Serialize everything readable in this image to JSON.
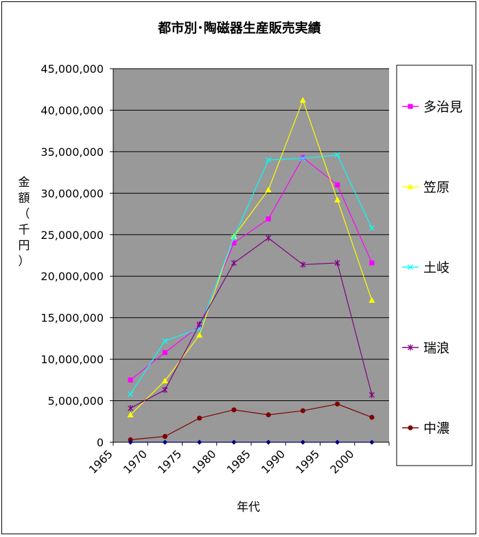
{
  "chart_data": {
    "type": "line",
    "title": "都市別･陶磁器生産販売実績",
    "xlabel": "年代",
    "ylabel": "金額（千円）",
    "categories": [
      "1965",
      "1970",
      "1975",
      "1980",
      "1985",
      "1990",
      "1995",
      "2000"
    ],
    "x_category_tick_labels": [
      "1965",
      "1970",
      "1975",
      "1980",
      "1985",
      "1990",
      "1995",
      "2000"
    ],
    "y_tick_labels": [
      "0",
      "5,000,000",
      "10,000,000",
      "15,000,000",
      "20,000,000",
      "25,000,000",
      "30,000,000",
      "35,000,000",
      "40,000,000",
      "45,000,000"
    ],
    "ylim": [
      0,
      45000000
    ],
    "y_step": 5000000,
    "grid": "horizontal",
    "plot_background": "#999999",
    "legend_position": "right",
    "series": [
      {
        "name": "多治見",
        "color": "#FF00FF",
        "marker": "square",
        "values": [
          7500000,
          10800000,
          14000000,
          24000000,
          26900000,
          34300000,
          31000000,
          21600000
        ]
      },
      {
        "name": "笠原",
        "color": "#FFFF00",
        "marker": "triangle",
        "values": [
          3300000,
          7400000,
          12900000,
          24800000,
          30400000,
          41200000,
          29200000,
          17100000
        ]
      },
      {
        "name": "土岐",
        "color": "#00FFFF",
        "marker": "x",
        "values": [
          5800000,
          12200000,
          13700000,
          24700000,
          34000000,
          34200000,
          34600000,
          25800000
        ]
      },
      {
        "name": "瑞浪",
        "color": "#800080",
        "marker": "star",
        "values": [
          4100000,
          6300000,
          14200000,
          21600000,
          24600000,
          21400000,
          21600000,
          5700000
        ]
      },
      {
        "name": "中濃",
        "color": "#800000",
        "marker": "circle",
        "values": [
          300000,
          700000,
          2900000,
          3900000,
          3300000,
          3800000,
          4600000,
          3000000
        ]
      },
      {
        "name": "",
        "color": "#000080",
        "marker": "diamond",
        "values": [
          0,
          0,
          0,
          0,
          0,
          0,
          0,
          0
        ],
        "in_legend": false
      }
    ]
  }
}
